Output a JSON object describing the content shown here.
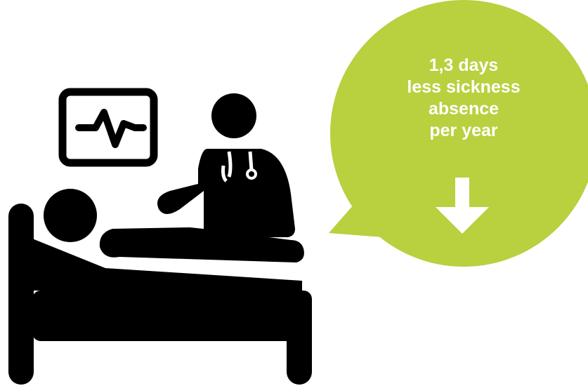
{
  "callout": {
    "line1": "1,3 days",
    "line2": "less sickness",
    "line3": "absence",
    "line4": "per year"
  },
  "icons": {
    "monitor": "heart-monitor-icon",
    "doctor": "doctor-with-stethoscope-icon",
    "patient": "patient-in-bed-icon",
    "arrow": "down-arrow-icon"
  },
  "colors": {
    "bubble": "#b9d03f",
    "icon": "#000000",
    "text": "#ffffff"
  }
}
